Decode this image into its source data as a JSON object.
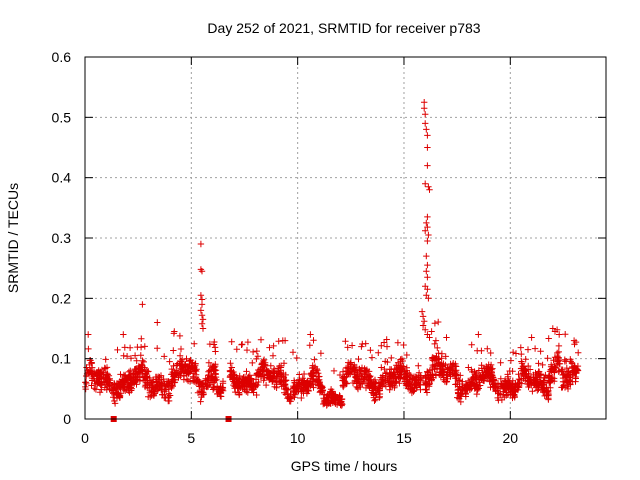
{
  "chart_data": {
    "type": "scatter",
    "title": "Day 252 of 2021, SRMTID for receiver p783",
    "xlabel": "GPS time / hours",
    "ylabel": "SRMTID / TECUs",
    "xlim": [
      0,
      24.5
    ],
    "ylim": [
      0,
      0.6
    ],
    "xticks": [
      "0",
      "5",
      "10",
      "15",
      "20"
    ],
    "xtick_values": [
      0,
      5,
      10,
      15,
      20
    ],
    "yticks": [
      "0",
      "0.1",
      "0.2",
      "0.3",
      "0.4",
      "0.5",
      "0.6"
    ],
    "ytick_values": [
      0,
      0.1,
      0.2,
      0.3,
      0.4,
      0.5,
      0.6
    ],
    "grid": true,
    "marker": "+",
    "color": "#dd0000",
    "gap_markers": [
      1.35,
      6.75
    ],
    "baseline_segments": [
      {
        "x0": 0.0,
        "x1": 4.4,
        "mean": 0.062,
        "spread": 0.032
      },
      {
        "x0": 4.4,
        "x1": 5.2,
        "mean": 0.075,
        "spread": 0.034
      },
      {
        "x0": 5.2,
        "x1": 6.2,
        "mean": 0.07,
        "spread": 0.035
      },
      {
        "x0": 6.2,
        "x1": 6.5,
        "mean": 0.045,
        "spread": 0.02
      },
      {
        "x0": 6.8,
        "x1": 9.6,
        "mean": 0.068,
        "spread": 0.03
      },
      {
        "x0": 9.6,
        "x1": 11.2,
        "mean": 0.055,
        "spread": 0.028
      },
      {
        "x0": 11.2,
        "x1": 12.1,
        "mean": 0.04,
        "spread": 0.022
      },
      {
        "x0": 12.1,
        "x1": 15.2,
        "mean": 0.065,
        "spread": 0.03
      },
      {
        "x0": 15.2,
        "x1": 15.8,
        "mean": 0.07,
        "spread": 0.03
      },
      {
        "x0": 16.0,
        "x1": 17.5,
        "mean": 0.075,
        "spread": 0.035
      },
      {
        "x0": 17.5,
        "x1": 20.5,
        "mean": 0.06,
        "spread": 0.03
      },
      {
        "x0": 20.5,
        "x1": 21.8,
        "mean": 0.06,
        "spread": 0.028
      },
      {
        "x0": 21.8,
        "x1": 22.4,
        "mean": 0.09,
        "spread": 0.035
      },
      {
        "x0": 22.4,
        "x1": 23.2,
        "mean": 0.065,
        "spread": 0.03
      }
    ],
    "highlight_points": [
      {
        "x": 0.15,
        "y": 0.14
      },
      {
        "x": 1.8,
        "y": 0.14
      },
      {
        "x": 2.7,
        "y": 0.19
      },
      {
        "x": 3.4,
        "y": 0.16
      },
      {
        "x": 4.2,
        "y": 0.145
      },
      {
        "x": 5.45,
        "y": 0.29
      },
      {
        "x": 5.45,
        "y": 0.248
      },
      {
        "x": 5.5,
        "y": 0.245
      },
      {
        "x": 5.45,
        "y": 0.205
      },
      {
        "x": 5.5,
        "y": 0.198
      },
      {
        "x": 5.5,
        "y": 0.19
      },
      {
        "x": 5.45,
        "y": 0.18
      },
      {
        "x": 5.5,
        "y": 0.172
      },
      {
        "x": 5.55,
        "y": 0.165
      },
      {
        "x": 5.5,
        "y": 0.158
      },
      {
        "x": 5.55,
        "y": 0.15
      },
      {
        "x": 6.9,
        "y": 0.128
      },
      {
        "x": 9.3,
        "y": 0.13
      },
      {
        "x": 10.6,
        "y": 0.14
      },
      {
        "x": 13.0,
        "y": 0.12
      },
      {
        "x": 13.2,
        "y": 0.125
      },
      {
        "x": 14.2,
        "y": 0.12
      },
      {
        "x": 15.95,
        "y": 0.525
      },
      {
        "x": 15.95,
        "y": 0.515
      },
      {
        "x": 16.0,
        "y": 0.505
      },
      {
        "x": 16.0,
        "y": 0.49
      },
      {
        "x": 16.05,
        "y": 0.48
      },
      {
        "x": 16.1,
        "y": 0.47
      },
      {
        "x": 16.1,
        "y": 0.45
      },
      {
        "x": 16.1,
        "y": 0.42
      },
      {
        "x": 16.15,
        "y": 0.385
      },
      {
        "x": 16.2,
        "y": 0.38
      },
      {
        "x": 16.0,
        "y": 0.39
      },
      {
        "x": 16.1,
        "y": 0.335
      },
      {
        "x": 16.05,
        "y": 0.325
      },
      {
        "x": 16.1,
        "y": 0.318
      },
      {
        "x": 16.0,
        "y": 0.312
      },
      {
        "x": 16.15,
        "y": 0.305
      },
      {
        "x": 16.1,
        "y": 0.295
      },
      {
        "x": 16.05,
        "y": 0.27
      },
      {
        "x": 16.1,
        "y": 0.255
      },
      {
        "x": 16.05,
        "y": 0.245
      },
      {
        "x": 16.1,
        "y": 0.235
      },
      {
        "x": 16.0,
        "y": 0.22
      },
      {
        "x": 16.1,
        "y": 0.215
      },
      {
        "x": 16.05,
        "y": 0.205
      },
      {
        "x": 16.15,
        "y": 0.2
      },
      {
        "x": 15.85,
        "y": 0.178
      },
      {
        "x": 15.9,
        "y": 0.17
      },
      {
        "x": 15.95,
        "y": 0.162
      },
      {
        "x": 15.9,
        "y": 0.155
      },
      {
        "x": 16.0,
        "y": 0.148
      },
      {
        "x": 16.1,
        "y": 0.14
      },
      {
        "x": 16.2,
        "y": 0.135
      },
      {
        "x": 16.3,
        "y": 0.145
      },
      {
        "x": 16.5,
        "y": 0.13
      },
      {
        "x": 17.0,
        "y": 0.135
      },
      {
        "x": 18.5,
        "y": 0.14
      },
      {
        "x": 21.0,
        "y": 0.135
      },
      {
        "x": 22.0,
        "y": 0.15
      },
      {
        "x": 22.1,
        "y": 0.145
      },
      {
        "x": 22.2,
        "y": 0.148
      },
      {
        "x": 22.3,
        "y": 0.14
      },
      {
        "x": 23.0,
        "y": 0.13
      }
    ]
  }
}
